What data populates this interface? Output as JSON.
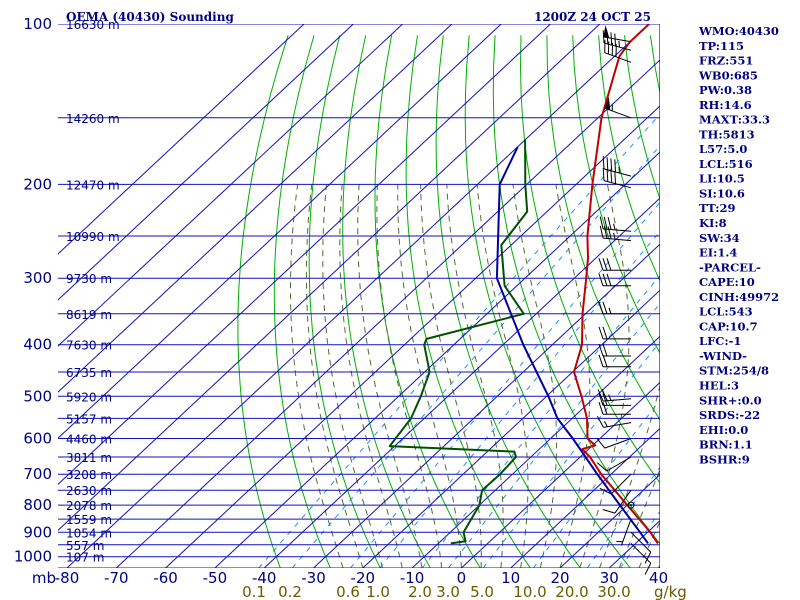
{
  "chart_data": {
    "type": "line",
    "chart_kind": "Skew-T log-P sounding",
    "title": "OEMA (40430) Sounding",
    "valid_time": "1200Z 24 OCT 25",
    "pressure_axis": {
      "unit_label": "mb",
      "levels": [
        100,
        200,
        300,
        400,
        500,
        600,
        700,
        800,
        900,
        1000
      ],
      "range": [
        100,
        1050
      ]
    },
    "temperature_axis": {
      "unit_label": "C",
      "ticks": [
        -80,
        -70,
        -60,
        -50,
        -40,
        -30,
        -20,
        -10,
        0,
        10,
        20,
        30,
        40
      ],
      "tick_labels": [
        "-80",
        "-70",
        "-60",
        "-50",
        "-40",
        "-30",
        "-20",
        "-10",
        "0",
        "10",
        "20",
        "30",
        "40"
      ],
      "range_at_bottom": [
        -80,
        40
      ]
    },
    "height_labels": [
      {
        "label": "16630 m",
        "p": 100
      },
      {
        "label": "14260 m",
        "p": 150
      },
      {
        "label": "12470 m",
        "p": 200
      },
      {
        "label": "10990 m",
        "p": 250
      },
      {
        "label": "9730 m",
        "p": 300
      },
      {
        "label": "8619 m",
        "p": 350
      },
      {
        "label": "7630 m",
        "p": 400
      },
      {
        "label": "6735 m",
        "p": 450
      },
      {
        "label": "5920 m",
        "p": 500
      },
      {
        "label": "5157 m",
        "p": 550
      },
      {
        "label": "4460 m",
        "p": 600
      },
      {
        "label": "3811 m",
        "p": 650
      },
      {
        "label": "3208 m",
        "p": 700
      },
      {
        "label": "2630 m",
        "p": 750
      },
      {
        "label": "2078 m",
        "p": 800
      },
      {
        "label": "1559 m",
        "p": 850
      },
      {
        "label": "1054 m",
        "p": 900
      },
      {
        "label": "557 m",
        "p": 950
      },
      {
        "label": "107 m",
        "p": 1000
      }
    ],
    "mixing_ratio_labels": [
      "0.1",
      "0.2",
      "0.6",
      "1.0",
      "2.0",
      "3.0",
      "5.0",
      "10.0",
      "20.0",
      "30.0"
    ],
    "mixing_ratio_unit": "g/kg",
    "series": [
      {
        "name": "temperature",
        "color": "#c00000",
        "points": [
          {
            "p": 100,
            "t": -80
          },
          {
            "p": 108,
            "t": -80
          },
          {
            "p": 115,
            "t": -79
          },
          {
            "p": 150,
            "t": -69.3
          },
          {
            "p": 200,
            "t": -56.7
          },
          {
            "p": 250,
            "t": -46.5
          },
          {
            "p": 275,
            "t": -41.6
          },
          {
            "p": 300,
            "t": -37.6
          },
          {
            "p": 350,
            "t": -30.6
          },
          {
            "p": 400,
            "t": -24.0
          },
          {
            "p": 450,
            "t": -19.7
          },
          {
            "p": 500,
            "t": -12.9
          },
          {
            "p": 550,
            "t": -7.0
          },
          {
            "p": 600,
            "t": -2.5
          },
          {
            "p": 618,
            "t": 0.5
          },
          {
            "p": 628,
            "t": -1.3
          },
          {
            "p": 650,
            "t": 2.0
          },
          {
            "p": 700,
            "t": 8.0
          },
          {
            "p": 800,
            "t": 20.0
          },
          {
            "p": 900,
            "t": 30.6
          },
          {
            "p": 944,
            "t": 34.5
          }
        ]
      },
      {
        "name": "dewpoint",
        "color": "#005000",
        "points": [
          {
            "p": 165,
            "t": -80
          },
          {
            "p": 200,
            "t": -70.3
          },
          {
            "p": 225,
            "t": -64.0
          },
          {
            "p": 260,
            "t": -62.0
          },
          {
            "p": 310,
            "t": -52.5
          },
          {
            "p": 350,
            "t": -42.5
          },
          {
            "p": 390,
            "t": -56.8
          },
          {
            "p": 400,
            "t": -56.0
          },
          {
            "p": 450,
            "t": -49.0
          },
          {
            "p": 500,
            "t": -45.5
          },
          {
            "p": 550,
            "t": -42.7
          },
          {
            "p": 620,
            "t": -41.0
          },
          {
            "p": 635,
            "t": -14.5
          },
          {
            "p": 650,
            "t": -13.0
          },
          {
            "p": 700,
            "t": -12.5
          },
          {
            "p": 750,
            "t": -12.7
          },
          {
            "p": 800,
            "t": -10.0
          },
          {
            "p": 900,
            "t": -7.3
          },
          {
            "p": 935,
            "t": -5.0
          },
          {
            "p": 944,
            "t": -7.5
          }
        ]
      },
      {
        "name": "parcel",
        "color": "#0000a0",
        "points": [
          {
            "p": 170,
            "t": -80
          },
          {
            "p": 200,
            "t": -75.5
          },
          {
            "p": 300,
            "t": -55.7
          },
          {
            "p": 400,
            "t": -35.9
          },
          {
            "p": 500,
            "t": -19.6
          },
          {
            "p": 550,
            "t": -13.0
          },
          {
            "p": 600,
            "t": -5.5
          },
          {
            "p": 700,
            "t": 7.2
          },
          {
            "p": 800,
            "t": 18.5
          },
          {
            "p": 900,
            "t": 28.5
          },
          {
            "p": 944,
            "t": 32.5
          }
        ]
      }
    ],
    "wind_barbs": [
      {
        "p": 108,
        "dir": 280,
        "kt": 50
      },
      {
        "p": 112,
        "dir": 285,
        "kt": 45
      },
      {
        "p": 118,
        "dir": 290,
        "kt": 40
      },
      {
        "p": 150,
        "dir": 290,
        "kt": 55
      },
      {
        "p": 193,
        "dir": 285,
        "kt": 45
      },
      {
        "p": 203,
        "dir": 285,
        "kt": 40
      },
      {
        "p": 245,
        "dir": 275,
        "kt": 35
      },
      {
        "p": 255,
        "dir": 275,
        "kt": 35
      },
      {
        "p": 290,
        "dir": 270,
        "kt": 30
      },
      {
        "p": 310,
        "dir": 270,
        "kt": 30
      },
      {
        "p": 350,
        "dir": 270,
        "kt": 25
      },
      {
        "p": 390,
        "dir": 270,
        "kt": 20
      },
      {
        "p": 420,
        "dir": 270,
        "kt": 20
      },
      {
        "p": 440,
        "dir": 270,
        "kt": 20
      },
      {
        "p": 505,
        "dir": 265,
        "kt": 25
      },
      {
        "p": 520,
        "dir": 270,
        "kt": 20
      },
      {
        "p": 540,
        "dir": 270,
        "kt": 20
      },
      {
        "p": 560,
        "dir": 260,
        "kt": 15
      },
      {
        "p": 600,
        "dir": 250,
        "kt": 10
      },
      {
        "p": 650,
        "dir": 240,
        "kt": 10
      },
      {
        "p": 700,
        "dir": 225,
        "kt": 10
      },
      {
        "p": 750,
        "dir": 215,
        "kt": 10
      },
      {
        "p": 800,
        "dir": 0,
        "kt": 0
      },
      {
        "p": 850,
        "dir": 200,
        "kt": 5
      },
      {
        "p": 900,
        "dir": 135,
        "kt": 10
      },
      {
        "p": 944,
        "dir": 135,
        "kt": 10
      }
    ],
    "indices": [
      "WMO:40430",
      "TP:115",
      "FRZ:551",
      "WB0:685",
      "PW:0.38",
      "RH:14.6",
      "MAXT:33.3",
      "TH:5813",
      "L57:5.0",
      "LCL:516",
      "LI:10.5",
      "SI:10.6",
      "TT:29",
      "KI:8",
      "SW:34",
      "EI:1.4",
      "-PARCEL-",
      "CAPE:10",
      "CINH:49972",
      "LCL:543",
      "CAP:10.7",
      "LFC:-1",
      "-WIND-",
      "STM:254/8",
      "HEL:3",
      "SHR+:0.0",
      "SRDS:-22",
      "EHI:0.0",
      "BRN:1.1",
      "BSHR:9"
    ]
  },
  "colors": {
    "grid": "#1010c0",
    "dry_adiabat": "#00b000",
    "moist_adiabat": "#556b2f",
    "mixing_ratio": "#1e90ff",
    "text": "#000080",
    "mixing_text": "#6b5a00",
    "barb": "#000000"
  }
}
